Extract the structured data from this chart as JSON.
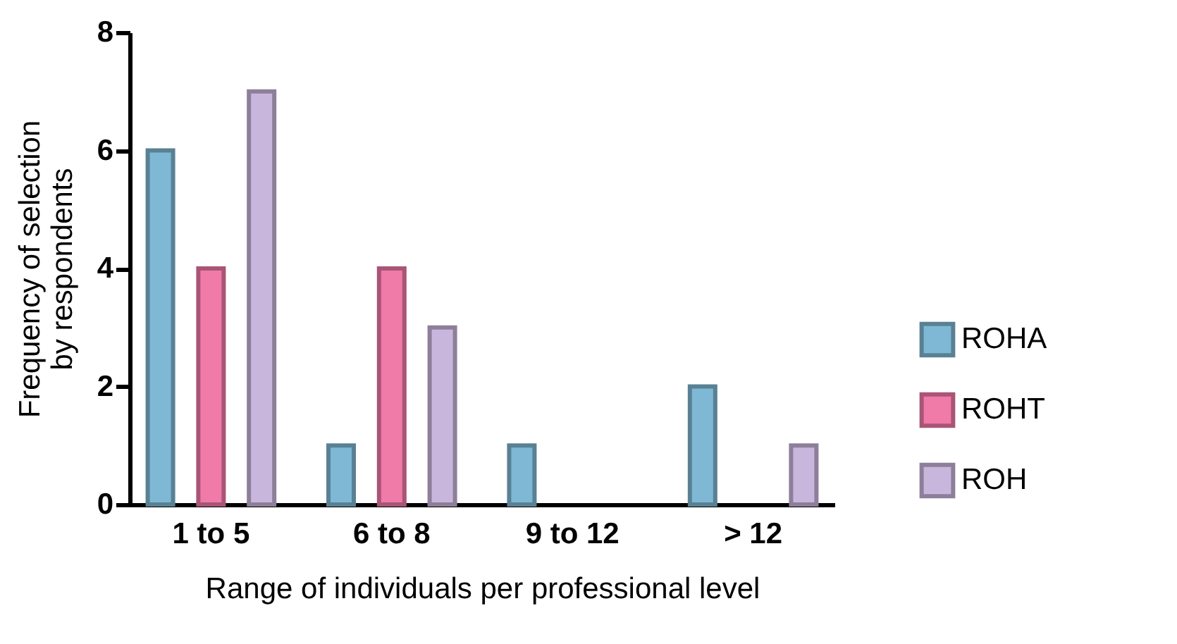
{
  "chart_data": {
    "type": "bar",
    "xlabel": "Range of individuals per professional level",
    "ylabel": "Frequency of selection\nby respondents",
    "categories": [
      "1 to 5",
      "6 to 8",
      "9 to 12",
      "> 12"
    ],
    "series": [
      {
        "name": "ROHA",
        "color": "#7fb8d4",
        "values": [
          6,
          1,
          1,
          2
        ]
      },
      {
        "name": "ROHT",
        "color": "#f07aa8",
        "values": [
          4,
          4,
          0,
          0
        ]
      },
      {
        "name": "ROH",
        "color": "#c9b6dc",
        "values": [
          7,
          3,
          0,
          1
        ]
      }
    ],
    "ylim": [
      0,
      8
    ],
    "yticks": [
      0,
      2,
      4,
      6,
      8
    ],
    "grid": false,
    "legend": "right"
  }
}
